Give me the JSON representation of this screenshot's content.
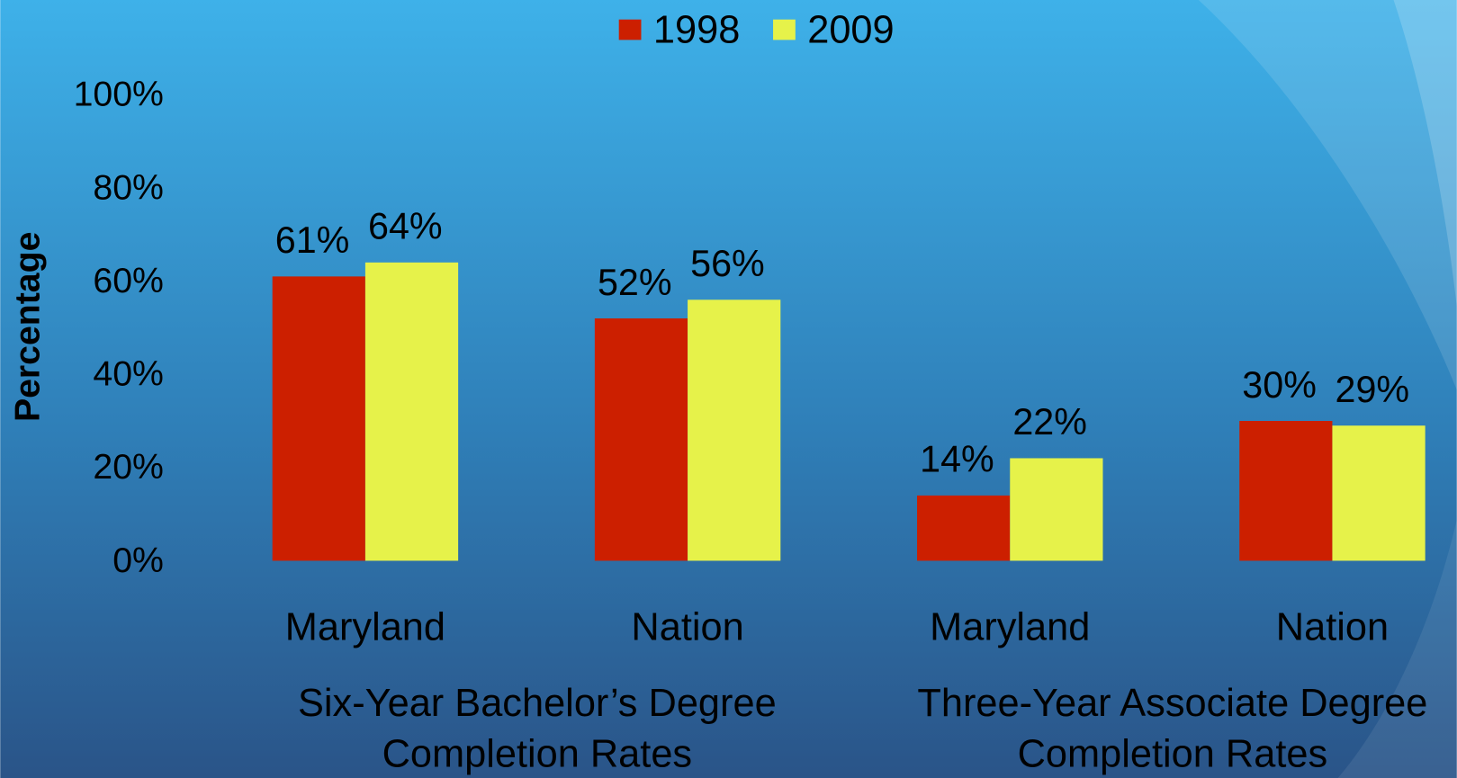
{
  "chart_data": {
    "type": "bar",
    "y_label": "Percentage",
    "categories": [
      "Maryland",
      "Nation",
      "Maryland",
      "Nation"
    ],
    "group_labels": [
      [
        "Six-Year Bachelor’s Degree",
        "Completion Rates"
      ],
      [
        "Three-Year Associate Degree",
        "Completion Rates"
      ]
    ],
    "series": [
      {
        "name": "1998",
        "color": "#cc1f00",
        "values": [
          61,
          52,
          14,
          30
        ],
        "value_labels": [
          "61%",
          "52%",
          "14%",
          "30%"
        ]
      },
      {
        "name": "2009",
        "color": "#e6f24a",
        "values": [
          64,
          56,
          22,
          29
        ],
        "value_labels": [
          "64%",
          "56%",
          "22%",
          "29%"
        ]
      }
    ],
    "ylim": [
      0,
      100
    ],
    "yticks": [
      {
        "value": 0,
        "label": "0%"
      },
      {
        "value": 20,
        "label": "20%"
      },
      {
        "value": 40,
        "label": "40%"
      },
      {
        "value": 60,
        "label": "60%"
      },
      {
        "value": 80,
        "label": "80%"
      },
      {
        "value": 100,
        "label": "100%"
      }
    ],
    "grid": false,
    "legend": "top"
  }
}
